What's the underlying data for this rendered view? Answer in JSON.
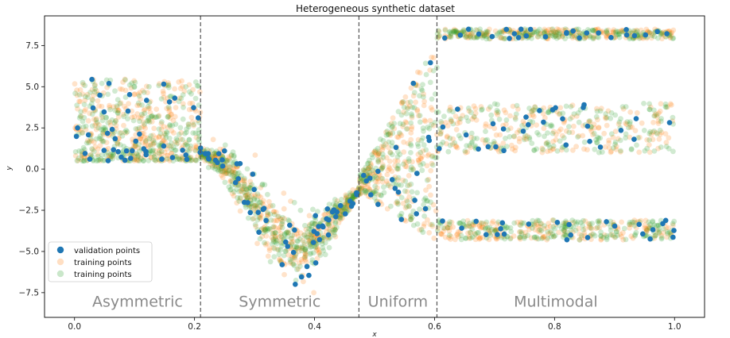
{
  "chart_data": {
    "type": "scatter",
    "title": "Heterogeneous synthetic dataset",
    "xlabel": "x",
    "ylabel": "y",
    "xlim": [
      -0.05,
      1.05
    ],
    "ylim": [
      -9.0,
      9.3
    ],
    "xticks": [
      0.0,
      0.2,
      0.4,
      0.6,
      0.8,
      1.0
    ],
    "xtick_labels": [
      "0.0",
      "0.2",
      "0.4",
      "0.6",
      "0.8",
      "1.0"
    ],
    "yticks": [
      -7.5,
      -5.0,
      -2.5,
      0.0,
      2.5,
      5.0,
      7.5
    ],
    "ytick_labels": [
      "−7.5",
      "−5.0",
      "−2.5",
      "0.0",
      "2.5",
      "5.0",
      "7.5"
    ],
    "grid": false,
    "legend_position": "lower-left",
    "region_boundaries": [
      0.21,
      0.474,
      0.604
    ],
    "regions": [
      {
        "label": "Asymmetric",
        "x": [
          0.0,
          0.21
        ]
      },
      {
        "label": "Symmetric",
        "x": [
          0.21,
          0.474
        ]
      },
      {
        "label": "Uniform",
        "x": [
          0.474,
          0.604
        ]
      },
      {
        "label": "Multimodal",
        "x": [
          0.604,
          1.0
        ]
      }
    ],
    "series": [
      {
        "name": "validation points",
        "color": "#1f77b4",
        "marker": "filled circle",
        "approx_count": 200
      },
      {
        "name": "training points",
        "color": "#ff7f0e",
        "marker": "translucent circle",
        "approx_count": 1500
      },
      {
        "name": "training points",
        "color": "#2ca02c",
        "marker": "translucent circle",
        "approx_count": 1500
      }
    ],
    "regions_detail": {
      "asymmetric": {
        "x_range": [
          0.0,
          0.21
        ],
        "y_min": 0.5,
        "y_max": 5.5,
        "density": "concentrated near 0.6"
      },
      "symmetric": {
        "x_range": [
          0.21,
          0.474
        ],
        "mean_curve": [
          [
            0.21,
            0.9
          ],
          [
            0.25,
            0.3
          ],
          [
            0.3,
            -2.2
          ],
          [
            0.35,
            -4.5
          ],
          [
            0.38,
            -5.0
          ],
          [
            0.42,
            -3.5
          ],
          [
            0.474,
            -1.3
          ]
        ],
        "spread_max": 1.6
      },
      "uniform": {
        "x_range": [
          0.474,
          0.604
        ],
        "lower_line": [
          [
            0.474,
            -1.5
          ],
          [
            0.604,
            -4.5
          ]
        ],
        "upper_line": [
          [
            0.474,
            -0.5
          ],
          [
            0.604,
            8.0
          ]
        ]
      },
      "multimodal": {
        "x_range": [
          0.604,
          1.0
        ],
        "modes": [
          {
            "center": 8.2,
            "spread": 0.3
          },
          {
            "center": 2.5,
            "spread": 1.5
          },
          {
            "center": -3.7,
            "spread": 0.5
          }
        ]
      }
    }
  }
}
